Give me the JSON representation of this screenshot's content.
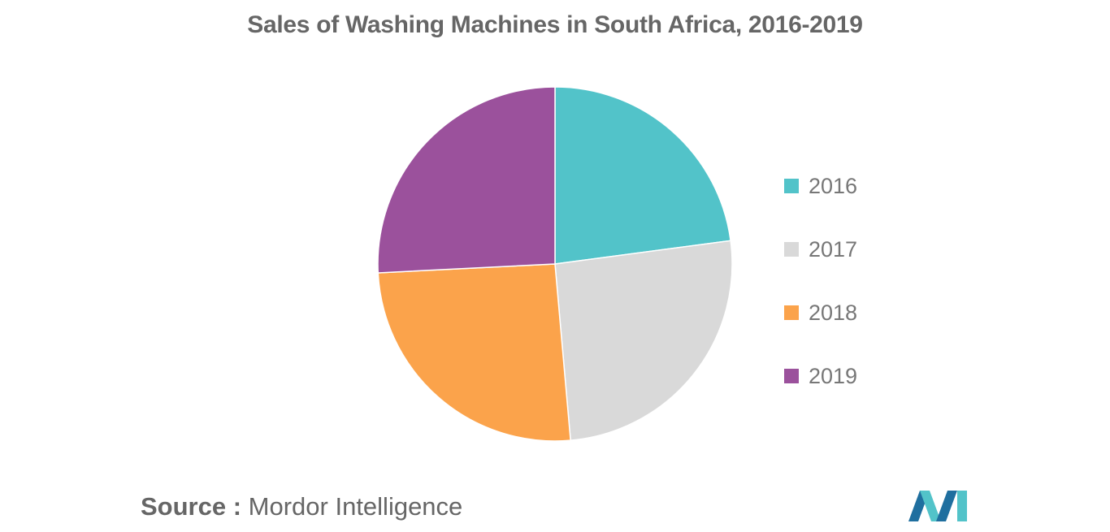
{
  "title": "Sales of Washing Machines in South Africa, 2016-2019",
  "source": {
    "label": "Source :",
    "value": "Mordor Intelligence"
  },
  "chart_data": {
    "type": "pie",
    "title": "Sales of Washing Machines in South Africa, 2016-2019",
    "categories": [
      "2016",
      "2017",
      "2018",
      "2019"
    ],
    "values": [
      22.9,
      25.7,
      25.6,
      25.8
    ],
    "colors": [
      "#52c3c9",
      "#d9d9d9",
      "#fba34b",
      "#9b519c"
    ],
    "legend_position": "right",
    "start_angle": "12 o'clock",
    "direction": "clockwise"
  },
  "logo": {
    "icon": "mordor-intelligence-logo",
    "colors": [
      "#1f6f9f",
      "#52c3c9"
    ]
  }
}
